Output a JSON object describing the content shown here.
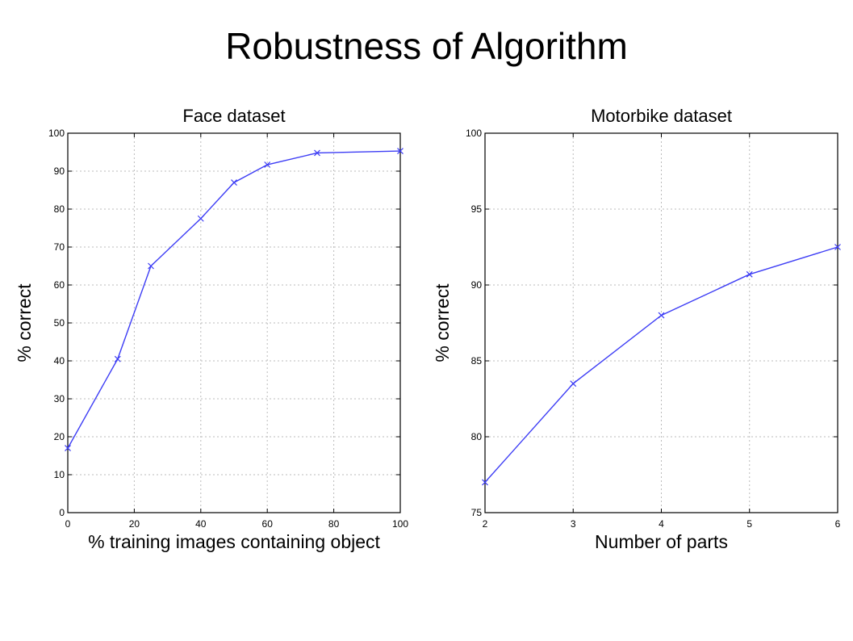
{
  "slide": {
    "title": "Robustness of Algorithm"
  },
  "colors": {
    "line": "#3d3df5",
    "grid": "#bbbbbb",
    "axis": "#000000"
  },
  "chart_data": [
    {
      "type": "line",
      "title": "Face dataset",
      "xlabel": "% training images containing object",
      "ylabel": "% correct",
      "xlim": [
        0,
        100
      ],
      "ylim": [
        0,
        100
      ],
      "xticks": [
        "0",
        "20",
        "40",
        "60",
        "80",
        "100"
      ],
      "yticks": [
        "0",
        "10",
        "20",
        "30",
        "40",
        "50",
        "60",
        "70",
        "80",
        "90",
        "100"
      ],
      "grid": true,
      "marker": "x",
      "x": [
        0,
        15,
        25,
        40,
        50,
        60,
        75,
        100
      ],
      "y": [
        17,
        40.5,
        65,
        77.5,
        87,
        91.7,
        94.8,
        95.3
      ]
    },
    {
      "type": "line",
      "title": "Motorbike dataset",
      "xlabel": "Number of parts",
      "ylabel": "% correct",
      "xlim": [
        2,
        6
      ],
      "ylim": [
        75,
        100
      ],
      "xticks": [
        "2",
        "3",
        "4",
        "5",
        "6"
      ],
      "yticks": [
        "75",
        "80",
        "85",
        "90",
        "95",
        "100"
      ],
      "grid": true,
      "marker": "x",
      "x": [
        2,
        3,
        4,
        5,
        6
      ],
      "y": [
        77,
        83.5,
        88,
        90.7,
        92.5
      ]
    }
  ]
}
